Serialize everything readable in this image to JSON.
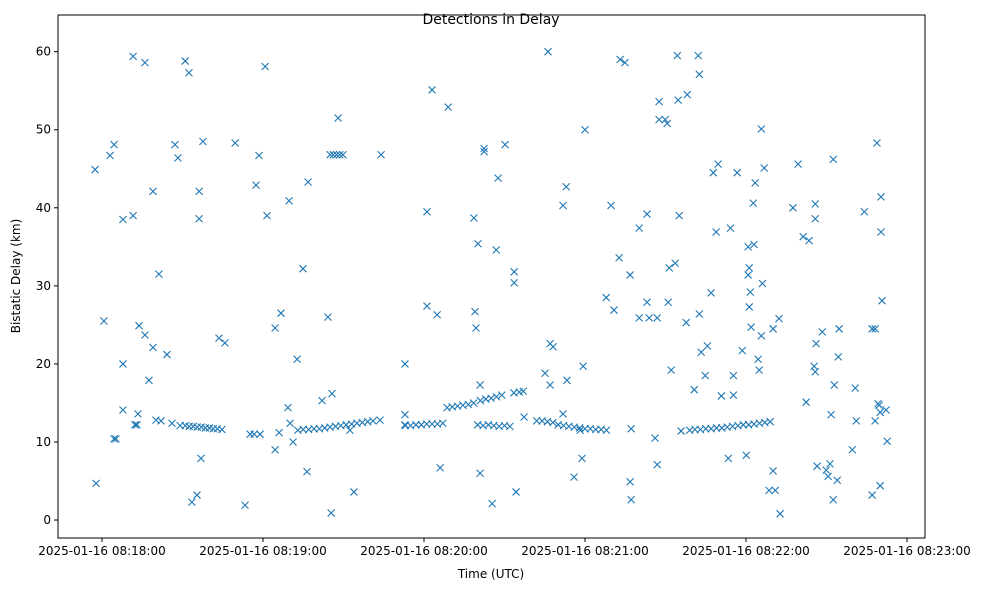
{
  "chart_data": {
    "type": "scatter",
    "title": "Detections in Delay",
    "xlabel": "Time (UTC)",
    "ylabel": "Bistatic Delay (km)",
    "marker": "x",
    "color": "#1f77b4",
    "grid": false,
    "xlim": [
      -16.4,
      306.7
    ],
    "ylim": [
      -2.3,
      64.7
    ],
    "xticks": [
      {
        "value": 0,
        "label": "2025-01-16 08:18:00"
      },
      {
        "value": 60,
        "label": "2025-01-16 08:19:00"
      },
      {
        "value": 120,
        "label": "2025-01-16 08:20:00"
      },
      {
        "value": 180,
        "label": "2025-01-16 08:21:00"
      },
      {
        "value": 240,
        "label": "2025-01-16 08:22:00"
      },
      {
        "value": 300,
        "label": "2025-01-16 08:23:00"
      }
    ],
    "yticks": [
      {
        "value": 0,
        "label": "0"
      },
      {
        "value": 10,
        "label": "10"
      },
      {
        "value": 20,
        "label": "20"
      },
      {
        "value": 30,
        "label": "30"
      },
      {
        "value": 40,
        "label": "40"
      },
      {
        "value": 50,
        "label": "50"
      },
      {
        "value": 60,
        "label": "60"
      }
    ],
    "points": [
      [
        -2.2,
        4.7
      ],
      [
        -2.6,
        44.9
      ],
      [
        0.7,
        25.5
      ],
      [
        3.0,
        46.7
      ],
      [
        4.5,
        48.1
      ],
      [
        4.5,
        10.4
      ],
      [
        5.2,
        10.4
      ],
      [
        7.8,
        38.5
      ],
      [
        7.8,
        20.0
      ],
      [
        7.8,
        14.1
      ],
      [
        11.6,
        39.0
      ],
      [
        11.6,
        59.4
      ],
      [
        12.3,
        12.2
      ],
      [
        13.0,
        12.2
      ],
      [
        13.4,
        13.6
      ],
      [
        13.8,
        24.9
      ],
      [
        16.0,
        58.6
      ],
      [
        16.0,
        23.7
      ],
      [
        17.5,
        17.9
      ],
      [
        19.0,
        22.1
      ],
      [
        19.0,
        42.1
      ],
      [
        20.1,
        12.8
      ],
      [
        21.2,
        31.5
      ],
      [
        22.0,
        12.7
      ],
      [
        24.2,
        21.2
      ],
      [
        26.1,
        12.4
      ],
      [
        27.2,
        48.1
      ],
      [
        28.3,
        46.4
      ],
      [
        29.1,
        12.1
      ],
      [
        31.0,
        58.8
      ],
      [
        32.4,
        57.3
      ],
      [
        33.5,
        2.3
      ],
      [
        35.4,
        3.2
      ],
      [
        36.2,
        42.1
      ],
      [
        36.2,
        38.6
      ],
      [
        36.9,
        7.9
      ],
      [
        37.6,
        48.5
      ],
      [
        31.0,
        12.1
      ],
      [
        32.5,
        12.0
      ],
      [
        34.0,
        12.0
      ],
      [
        35.5,
        11.9
      ],
      [
        37.0,
        11.9
      ],
      [
        38.5,
        11.8
      ],
      [
        40.0,
        11.8
      ],
      [
        41.5,
        11.7
      ],
      [
        43.0,
        11.7
      ],
      [
        44.7,
        11.6
      ],
      [
        43.6,
        23.3
      ],
      [
        45.8,
        22.7
      ],
      [
        49.6,
        48.3
      ],
      [
        53.3,
        1.9
      ],
      [
        55.2,
        11.0
      ],
      [
        56.7,
        11.0
      ],
      [
        57.4,
        42.9
      ],
      [
        58.5,
        46.7
      ],
      [
        58.9,
        11.0
      ],
      [
        60.8,
        58.1
      ],
      [
        61.5,
        39.0
      ],
      [
        64.5,
        24.6
      ],
      [
        64.5,
        9.0
      ],
      [
        66.0,
        11.2
      ],
      [
        66.7,
        26.5
      ],
      [
        69.3,
        14.4
      ],
      [
        69.7,
        40.9
      ],
      [
        70.1,
        12.4
      ],
      [
        71.2,
        10.0
      ],
      [
        72.7,
        20.6
      ],
      [
        73,
        11.5
      ],
      [
        75,
        11.6
      ],
      [
        77,
        11.6
      ],
      [
        79,
        11.7
      ],
      [
        81,
        11.7
      ],
      [
        83,
        11.8
      ],
      [
        85,
        11.9
      ],
      [
        87,
        12.0
      ],
      [
        89,
        12.1
      ],
      [
        91,
        12.2
      ],
      [
        93,
        12.3
      ],
      [
        95,
        12.4
      ],
      [
        97,
        12.5
      ],
      [
        99,
        12.6
      ],
      [
        101,
        12.7
      ],
      [
        103.6,
        12.8
      ],
      [
        74.9,
        32.2
      ],
      [
        76.4,
        6.2
      ],
      [
        76.8,
        43.3
      ],
      [
        82.0,
        15.3
      ],
      [
        84.2,
        26.0
      ],
      [
        85.4,
        0.9
      ],
      [
        85.7,
        16.2
      ],
      [
        85.0,
        46.8
      ],
      [
        86.2,
        46.8
      ],
      [
        87.4,
        46.8
      ],
      [
        88.6,
        46.8
      ],
      [
        89.8,
        46.8
      ],
      [
        88.0,
        51.5
      ],
      [
        92.4,
        11.5
      ],
      [
        93.9,
        3.6
      ],
      [
        104.0,
        46.8
      ],
      [
        112.9,
        20.0
      ],
      [
        112.9,
        13.5
      ],
      [
        112.9,
        12.2
      ],
      [
        113,
        12.1
      ],
      [
        115,
        12.1
      ],
      [
        117,
        12.2
      ],
      [
        119,
        12.2
      ],
      [
        121,
        12.3
      ],
      [
        123,
        12.3
      ],
      [
        125,
        12.3
      ],
      [
        127,
        12.4
      ],
      [
        121.1,
        27.4
      ],
      [
        121.1,
        39.5
      ],
      [
        123.0,
        55.1
      ],
      [
        124.9,
        26.3
      ],
      [
        126.0,
        6.7
      ],
      [
        129.0,
        52.9
      ],
      [
        128.6,
        14.4
      ],
      [
        130.5,
        14.5
      ],
      [
        132.5,
        14.6
      ],
      [
        134.5,
        14.7
      ],
      [
        136.5,
        14.8
      ],
      [
        138.5,
        15.0
      ],
      [
        138.6,
        38.7
      ],
      [
        139.0,
        26.7
      ],
      [
        139.4,
        24.6
      ],
      [
        140.1,
        35.4
      ],
      [
        140.9,
        17.3
      ],
      [
        140.9,
        6.0
      ],
      [
        142.4,
        47.6
      ],
      [
        142.4,
        47.2
      ],
      [
        140,
        12.2
      ],
      [
        142,
        12.1
      ],
      [
        144,
        12.2
      ],
      [
        146,
        12.1
      ],
      [
        148,
        12.0
      ],
      [
        150,
        12.1
      ],
      [
        152,
        12.0
      ],
      [
        141,
        15.3
      ],
      [
        143,
        15.5
      ],
      [
        145,
        15.6
      ],
      [
        147,
        15.8
      ],
      [
        149,
        16.0
      ],
      [
        145.4,
        2.1
      ],
      [
        146.9,
        34.6
      ],
      [
        147.6,
        43.8
      ],
      [
        150.2,
        48.1
      ],
      [
        153.6,
        31.8
      ],
      [
        153.6,
        30.4
      ],
      [
        154.3,
        3.6
      ],
      [
        153.5,
        16.3
      ],
      [
        155.5,
        16.4
      ],
      [
        157,
        16.5
      ],
      [
        157.3,
        13.2
      ],
      [
        162,
        12.7
      ],
      [
        164,
        12.7
      ],
      [
        166,
        12.6
      ],
      [
        168,
        12.5
      ],
      [
        165.1,
        18.8
      ],
      [
        166.2,
        60.0
      ],
      [
        167.0,
        22.6
      ],
      [
        168.1,
        22.2
      ],
      [
        167.0,
        17.3
      ],
      [
        171.8,
        13.6
      ],
      [
        171.8,
        40.3
      ],
      [
        173.0,
        42.7
      ],
      [
        173.3,
        17.9
      ],
      [
        175.9,
        5.5
      ],
      [
        178.2,
        11.5
      ],
      [
        178.9,
        7.9
      ],
      [
        179.3,
        19.7
      ],
      [
        180.0,
        50.0
      ],
      [
        170,
        12.2
      ],
      [
        172,
        12.1
      ],
      [
        174,
        12.0
      ],
      [
        176,
        11.9
      ],
      [
        178,
        11.8
      ],
      [
        180,
        11.7
      ],
      [
        182,
        11.7
      ],
      [
        184,
        11.6
      ],
      [
        186,
        11.6
      ],
      [
        188,
        11.5
      ],
      [
        187.9,
        28.5
      ],
      [
        189.7,
        40.3
      ],
      [
        190.8,
        26.9
      ],
      [
        192.7,
        33.6
      ],
      [
        193.1,
        59.0
      ],
      [
        194.9,
        58.6
      ],
      [
        196.8,
        31.4
      ],
      [
        196.8,
        4.9
      ],
      [
        197.2,
        2.6
      ],
      [
        197.2,
        11.7
      ],
      [
        200.2,
        37.4
      ],
      [
        200.2,
        25.9
      ],
      [
        203.1,
        39.2
      ],
      [
        203.1,
        27.9
      ],
      [
        203.9,
        25.9
      ],
      [
        206.1,
        10.5
      ],
      [
        206.9,
        7.1
      ],
      [
        206.9,
        25.9
      ],
      [
        207.6,
        53.6
      ],
      [
        207.6,
        51.3
      ],
      [
        209.9,
        51.3
      ],
      [
        210.6,
        50.8
      ],
      [
        211.0,
        27.9
      ],
      [
        211.4,
        32.3
      ],
      [
        212.1,
        19.2
      ],
      [
        213.6,
        32.9
      ],
      [
        214.4,
        59.5
      ],
      [
        214.7,
        53.8
      ],
      [
        215.1,
        39.0
      ],
      [
        215.8,
        11.4
      ],
      [
        217.7,
        25.3
      ],
      [
        218.1,
        54.5
      ],
      [
        219,
        11.5
      ],
      [
        221,
        11.6
      ],
      [
        223,
        11.6
      ],
      [
        225,
        11.7
      ],
      [
        227,
        11.7
      ],
      [
        229,
        11.8
      ],
      [
        231,
        11.8
      ],
      [
        233,
        11.9
      ],
      [
        235,
        12.0
      ],
      [
        237,
        12.1
      ],
      [
        239,
        12.2
      ],
      [
        241,
        12.2
      ],
      [
        243,
        12.3
      ],
      [
        245,
        12.4
      ],
      [
        247,
        12.5
      ],
      [
        249,
        12.6
      ],
      [
        220.7,
        16.7
      ],
      [
        222.2,
        59.5
      ],
      [
        222.6,
        57.1
      ],
      [
        222.6,
        26.4
      ],
      [
        223.3,
        21.5
      ],
      [
        224.8,
        18.5
      ],
      [
        225.6,
        22.3
      ],
      [
        227.0,
        29.1
      ],
      [
        227.8,
        44.5
      ],
      [
        228.9,
        36.9
      ],
      [
        229.6,
        45.6
      ],
      [
        230.8,
        15.9
      ],
      [
        233.4,
        7.9
      ],
      [
        234.2,
        37.4
      ],
      [
        235.3,
        18.5
      ],
      [
        235.3,
        16.0
      ],
      [
        236.7,
        44.5
      ],
      [
        238.6,
        21.7
      ],
      [
        240.1,
        8.3
      ],
      [
        240.8,
        35.0
      ],
      [
        240.8,
        31.4
      ],
      [
        241.2,
        32.3
      ],
      [
        241.2,
        27.3
      ],
      [
        241.6,
        29.2
      ],
      [
        241.9,
        24.7
      ],
      [
        242.7,
        40.6
      ],
      [
        243.0,
        35.3
      ],
      [
        243.4,
        43.2
      ],
      [
        244.5,
        20.6
      ],
      [
        244.9,
        19.2
      ],
      [
        245.7,
        50.1
      ],
      [
        245.7,
        23.6
      ],
      [
        246.1,
        30.3
      ],
      [
        246.8,
        45.1
      ],
      [
        248.6,
        3.8
      ],
      [
        250.1,
        6.3
      ],
      [
        250.9,
        3.8
      ],
      [
        250.1,
        24.5
      ],
      [
        252.3,
        25.8
      ],
      [
        252.7,
        0.8
      ],
      [
        257.5,
        40.0
      ],
      [
        259.4,
        45.6
      ],
      [
        261.3,
        36.3
      ],
      [
        262.4,
        15.1
      ],
      [
        263.5,
        35.8
      ],
      [
        265.4,
        19.7
      ],
      [
        265.8,
        19.0
      ],
      [
        265.8,
        40.5
      ],
      [
        265.8,
        38.6
      ],
      [
        266.1,
        22.6
      ],
      [
        266.5,
        6.9
      ],
      [
        268.4,
        24.1
      ],
      [
        269.9,
        6.4
      ],
      [
        270.6,
        5.6
      ],
      [
        271.3,
        7.2
      ],
      [
        271.7,
        13.5
      ],
      [
        272.5,
        2.6
      ],
      [
        272.5,
        46.2
      ],
      [
        272.9,
        17.3
      ],
      [
        274.0,
        5.1
      ],
      [
        274.4,
        20.9
      ],
      [
        274.7,
        24.5
      ],
      [
        279.6,
        9.0
      ],
      [
        280.7,
        16.9
      ],
      [
        281.1,
        12.7
      ],
      [
        284.1,
        39.5
      ],
      [
        287.0,
        3.2
      ],
      [
        287.0,
        24.5
      ],
      [
        288.1,
        24.5
      ],
      [
        288.1,
        12.7
      ],
      [
        288.8,
        48.3
      ],
      [
        289.2,
        14.9
      ],
      [
        289.6,
        14.7
      ],
      [
        290.0,
        13.8
      ],
      [
        290.0,
        4.4
      ],
      [
        290.3,
        41.4
      ],
      [
        290.3,
        36.9
      ],
      [
        290.7,
        28.1
      ],
      [
        292.2,
        14.1
      ],
      [
        292.6,
        10.1
      ]
    ]
  }
}
